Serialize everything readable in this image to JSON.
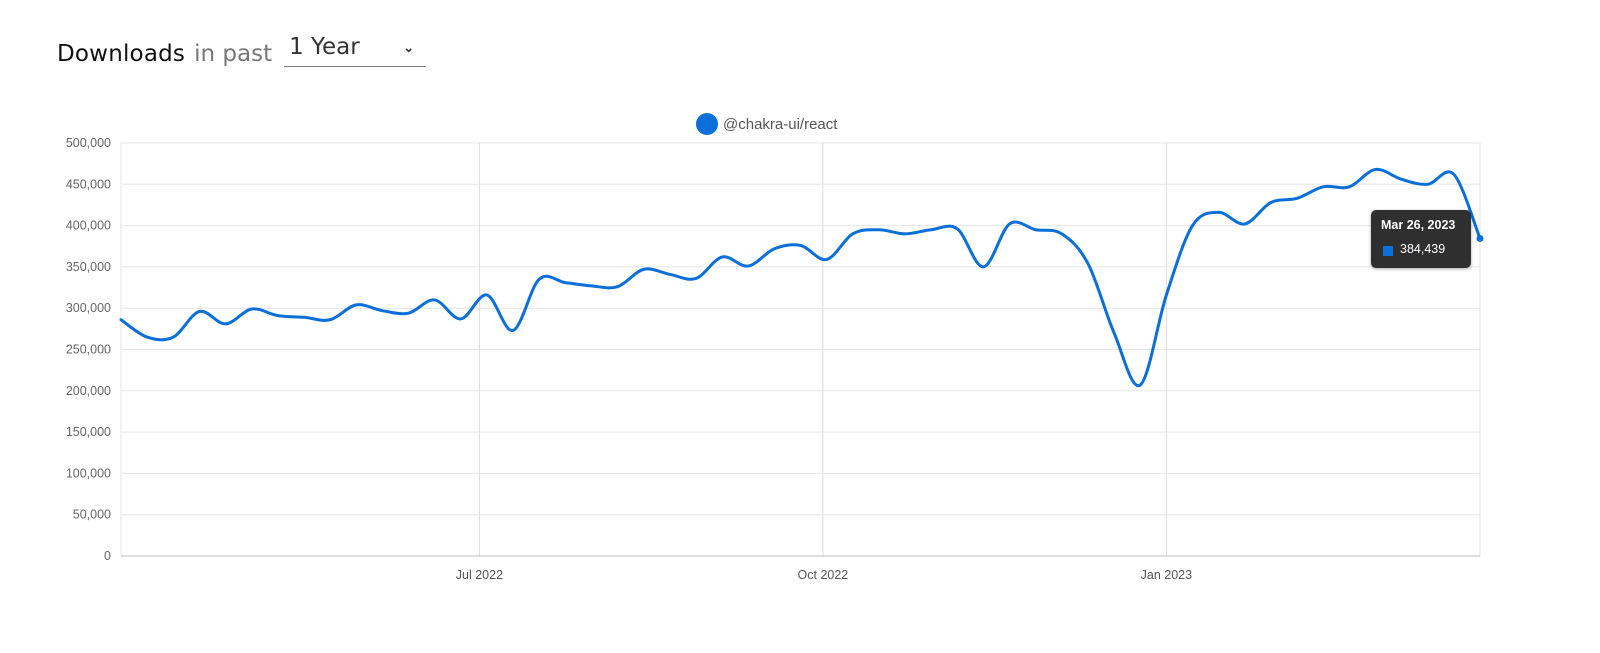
{
  "header": {
    "title": "Downloads",
    "subtitle": "in past",
    "range_value": "1 Year",
    "chevron_icon": "chevron-down-icon"
  },
  "legend": {
    "label": "@chakra-ui/react",
    "color": "#0a6fd8"
  },
  "tooltip": {
    "date": "Mar 26, 2023",
    "value": "384,439"
  },
  "chart_data": {
    "type": "line",
    "title": "",
    "xlabel": "",
    "ylabel": "",
    "ylim": [
      0,
      500000
    ],
    "y_ticks": [
      0,
      50000,
      100000,
      150000,
      200000,
      250000,
      300000,
      350000,
      400000,
      450000,
      500000
    ],
    "y_tick_labels": [
      "0",
      "50,000",
      "100,000",
      "150,000",
      "200,000",
      "250,000",
      "300,000",
      "350,000",
      "400,000",
      "450,000",
      "500,000"
    ],
    "x_tick_labels": [
      {
        "label": "Jul 2022",
        "date": "2022-07-01"
      },
      {
        "label": "Oct 2022",
        "date": "2022-10-01"
      },
      {
        "label": "Jan 2023",
        "date": "2023-01-01"
      }
    ],
    "xlim": [
      "2022-03-27",
      "2023-03-26"
    ],
    "grid": true,
    "legend_position": "top-center",
    "series": [
      {
        "name": "@chakra-ui/react",
        "color": "#0a6fd8",
        "points": [
          [
            "2022-03-27",
            286000
          ],
          [
            "2022-04-03",
            265000
          ],
          [
            "2022-04-10",
            265000
          ],
          [
            "2022-04-17",
            296000
          ],
          [
            "2022-04-24",
            281000
          ],
          [
            "2022-05-01",
            299000
          ],
          [
            "2022-05-08",
            291000
          ],
          [
            "2022-05-15",
            289000
          ],
          [
            "2022-05-22",
            286000
          ],
          [
            "2022-05-29",
            304000
          ],
          [
            "2022-06-05",
            297000
          ],
          [
            "2022-06-12",
            294000
          ],
          [
            "2022-06-19",
            310000
          ],
          [
            "2022-06-26",
            287000
          ],
          [
            "2022-07-03",
            316000
          ],
          [
            "2022-07-10",
            273000
          ],
          [
            "2022-07-17",
            335000
          ],
          [
            "2022-07-24",
            331000
          ],
          [
            "2022-07-31",
            327000
          ],
          [
            "2022-08-07",
            326000
          ],
          [
            "2022-08-14",
            347000
          ],
          [
            "2022-08-21",
            341000
          ],
          [
            "2022-08-28",
            336000
          ],
          [
            "2022-09-04",
            362000
          ],
          [
            "2022-09-11",
            351000
          ],
          [
            "2022-09-18",
            372000
          ],
          [
            "2022-09-25",
            376000
          ],
          [
            "2022-10-02",
            359000
          ],
          [
            "2022-10-09",
            390000
          ],
          [
            "2022-10-16",
            395000
          ],
          [
            "2022-10-23",
            390000
          ],
          [
            "2022-10-30",
            395000
          ],
          [
            "2022-11-06",
            396000
          ],
          [
            "2022-11-13",
            350000
          ],
          [
            "2022-11-20",
            402000
          ],
          [
            "2022-11-27",
            395000
          ],
          [
            "2022-12-04",
            390000
          ],
          [
            "2022-12-11",
            354000
          ],
          [
            "2022-12-18",
            270000
          ],
          [
            "2022-12-25",
            207000
          ],
          [
            "2023-01-01",
            316000
          ],
          [
            "2023-01-08",
            400000
          ],
          [
            "2023-01-15",
            416000
          ],
          [
            "2023-01-22",
            402000
          ],
          [
            "2023-01-29",
            428000
          ],
          [
            "2023-02-05",
            433000
          ],
          [
            "2023-02-12",
            447000
          ],
          [
            "2023-02-19",
            447000
          ],
          [
            "2023-02-26",
            468000
          ],
          [
            "2023-03-05",
            456000
          ],
          [
            "2023-03-12",
            450000
          ],
          [
            "2023-03-19",
            462000
          ],
          [
            "2023-03-26",
            384439
          ]
        ]
      }
    ]
  }
}
